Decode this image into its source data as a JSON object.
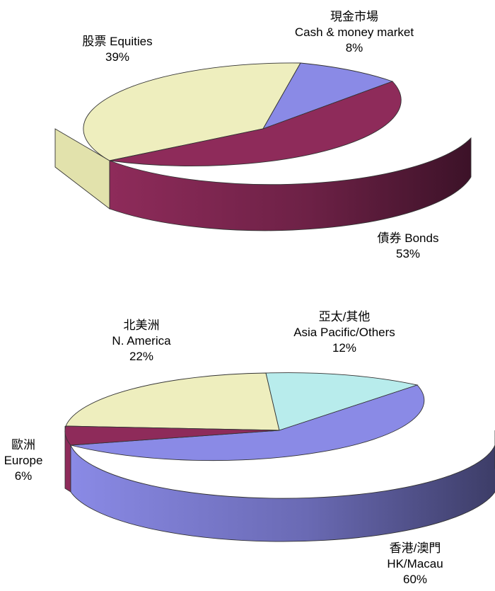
{
  "chart_data": [
    {
      "type": "pie",
      "style": "3d",
      "title": "",
      "slices": [
        {
          "label_zh": "股票",
          "label_en": "Equities",
          "value": 39,
          "value_label": "39%",
          "color": "#eeeebe"
        },
        {
          "label_zh": "現金市場",
          "label_en": "Cash & money market",
          "value": 8,
          "value_label": "8%",
          "color": "#8a8ae6"
        },
        {
          "label_zh": "債券",
          "label_en": "Bonds",
          "value": 53,
          "value_label": "53%",
          "color": "#8e2b5a"
        }
      ]
    },
    {
      "type": "pie",
      "style": "3d",
      "title": "",
      "slices": [
        {
          "label_zh": "北美洲",
          "label_en": "N. America",
          "value": 22,
          "value_label": "22%",
          "color": "#eeeebe"
        },
        {
          "label_zh": "亞太/其他",
          "label_en": "Asia Pacific/Others",
          "value": 12,
          "value_label": "12%",
          "color": "#b8ecec"
        },
        {
          "label_zh": "香港/澳門",
          "label_en": "HK/Macau",
          "value": 60,
          "value_label": "60%",
          "color": "#8a8ae6"
        },
        {
          "label_zh": "歐洲",
          "label_en": "Europe",
          "value": 6,
          "value_label": "6%",
          "color": "#8e2b5a"
        }
      ]
    }
  ]
}
